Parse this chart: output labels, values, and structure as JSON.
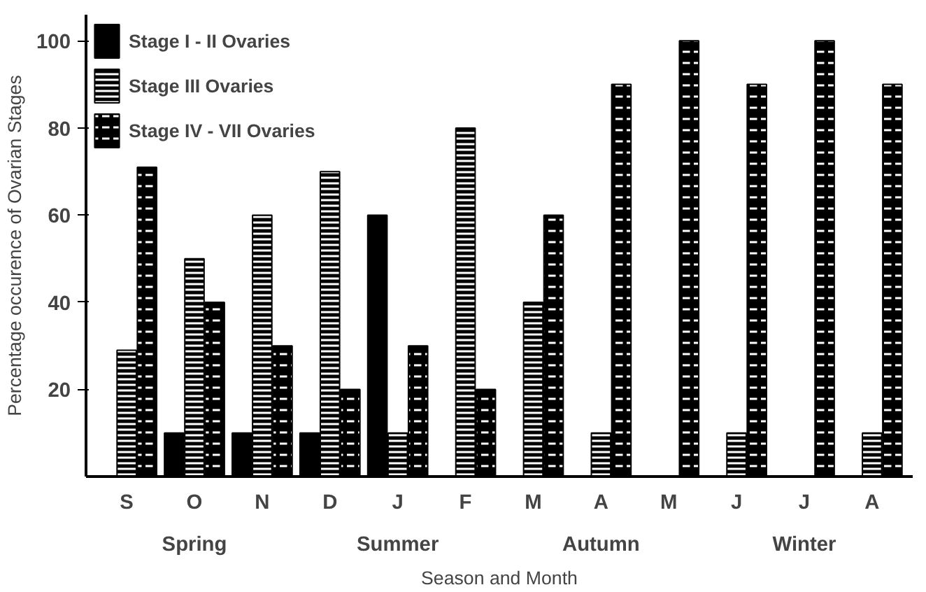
{
  "chart_data": {
    "type": "bar",
    "xlabel": "Season and Month",
    "ylabel": "Percentage occurence of Ovarian Stages",
    "categories": [
      "S",
      "O",
      "N",
      "D",
      "J",
      "F",
      "M",
      "A",
      "M",
      "J",
      "J",
      "A"
    ],
    "annotations": [
      "Spring",
      "Summer",
      "Autumn",
      "Winter"
    ],
    "series": [
      {
        "name": "Stage I - II Ovaries",
        "color": "#000000",
        "values": [
          0,
          10,
          10,
          10,
          60,
          0,
          0,
          0,
          0,
          0,
          0,
          0
        ]
      },
      {
        "name": "Stage III Ovaries",
        "color": "#000000",
        "values": [
          29,
          50,
          60,
          70,
          10,
          80,
          40,
          10,
          0,
          10,
          0,
          10
        ]
      },
      {
        "name": "Stage IV - VII Ovaries",
        "color": "#000000",
        "values": [
          71,
          40,
          30,
          20,
          30,
          20,
          60,
          90,
          100,
          90,
          100,
          90
        ]
      }
    ],
    "ylim": [
      0,
      106
    ],
    "yticks": [
      20,
      40,
      60,
      80,
      100
    ],
    "grid": false,
    "legend": "top left"
  }
}
